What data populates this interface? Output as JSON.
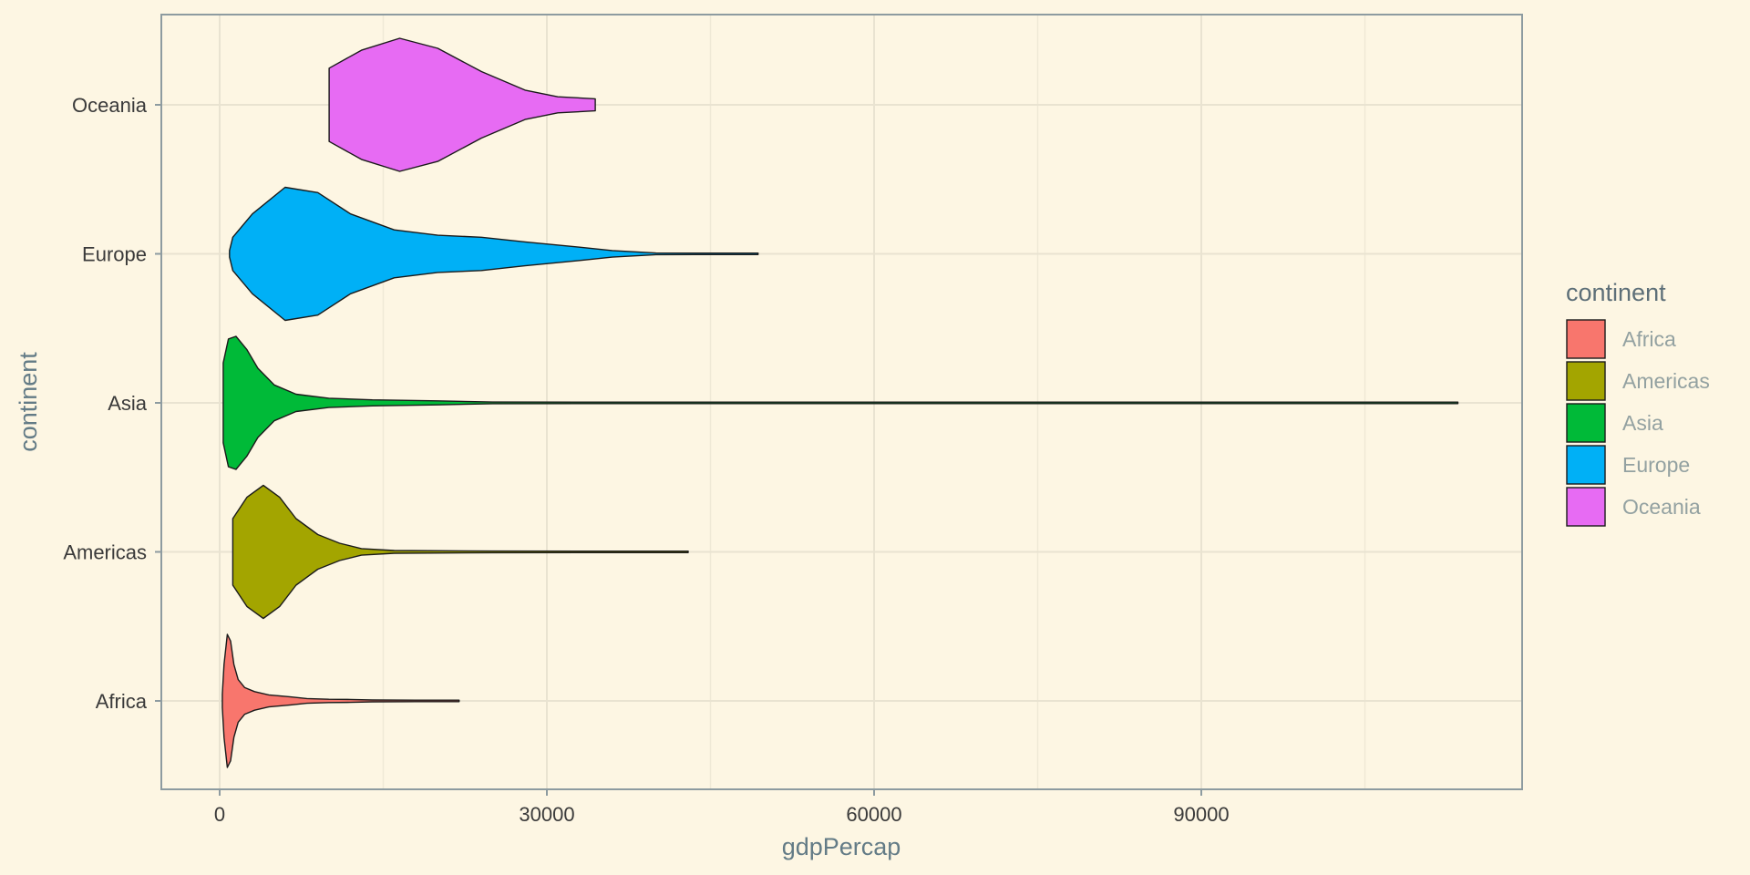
{
  "chart_data": {
    "type": "violin",
    "orientation": "horizontal",
    "title": "",
    "xlabel": "gdpPercap",
    "ylabel": "continent",
    "xlim": [
      -5500,
      119000
    ],
    "x_ticks": [
      0,
      30000,
      60000,
      90000
    ],
    "x_tick_labels": [
      "0",
      "30000",
      "60000",
      "90000"
    ],
    "x_minor_ticks": [
      15000,
      45000,
      75000,
      105000
    ],
    "categories": [
      "Africa",
      "Americas",
      "Asia",
      "Europe",
      "Oceania"
    ],
    "grid": true,
    "legend": {
      "title": "continent",
      "placement": "right"
    },
    "series": [
      {
        "name": "Africa",
        "color": "#F8766D",
        "min": 240,
        "max": 21950,
        "profile": [
          [
            240,
            0.1
          ],
          [
            400,
            0.55
          ],
          [
            700,
            1.0
          ],
          [
            1000,
            0.9
          ],
          [
            1300,
            0.55
          ],
          [
            1700,
            0.32
          ],
          [
            2300,
            0.2
          ],
          [
            3200,
            0.14
          ],
          [
            4500,
            0.09
          ],
          [
            6500,
            0.06
          ],
          [
            8000,
            0.035
          ],
          [
            10000,
            0.025
          ],
          [
            12000,
            0.022
          ],
          [
            14000,
            0.014
          ],
          [
            18000,
            0.009
          ],
          [
            21950,
            0.005
          ]
        ]
      },
      {
        "name": "Americas",
        "color": "#A3A500",
        "min": 1200,
        "max": 42950,
        "profile": [
          [
            1200,
            0.5
          ],
          [
            2500,
            0.82
          ],
          [
            4000,
            1.0
          ],
          [
            5500,
            0.82
          ],
          [
            7000,
            0.5
          ],
          [
            9000,
            0.26
          ],
          [
            11000,
            0.13
          ],
          [
            13000,
            0.05
          ],
          [
            16000,
            0.02
          ],
          [
            25000,
            0.012
          ],
          [
            42950,
            0.006
          ]
        ]
      },
      {
        "name": "Asia",
        "color": "#00BA38",
        "min": 330,
        "max": 113520,
        "profile": [
          [
            330,
            0.6
          ],
          [
            800,
            0.96
          ],
          [
            1500,
            1.0
          ],
          [
            2500,
            0.8
          ],
          [
            3500,
            0.52
          ],
          [
            5000,
            0.27
          ],
          [
            7000,
            0.13
          ],
          [
            10000,
            0.07
          ],
          [
            14000,
            0.045
          ],
          [
            20000,
            0.03
          ],
          [
            25000,
            0.012
          ],
          [
            35000,
            0.008
          ],
          [
            50000,
            0.003
          ],
          [
            113520,
            0.002
          ]
        ]
      },
      {
        "name": "Europe",
        "color": "#00B0F6",
        "min": 900,
        "max": 49360,
        "profile": [
          [
            900,
            0.05
          ],
          [
            1200,
            0.25
          ],
          [
            3000,
            0.6
          ],
          [
            6000,
            1.0
          ],
          [
            9000,
            0.92
          ],
          [
            12000,
            0.6
          ],
          [
            16000,
            0.36
          ],
          [
            20000,
            0.28
          ],
          [
            24000,
            0.25
          ],
          [
            28000,
            0.18
          ],
          [
            33000,
            0.1
          ],
          [
            36000,
            0.05
          ],
          [
            40000,
            0.012
          ],
          [
            49360,
            0.004
          ]
        ]
      },
      {
        "name": "Oceania",
        "color": "#E76BF3",
        "min": 10040,
        "max": 34440,
        "profile": [
          [
            10040,
            0.55
          ],
          [
            13000,
            0.82
          ],
          [
            16500,
            1.0
          ],
          [
            20000,
            0.85
          ],
          [
            24000,
            0.5
          ],
          [
            28000,
            0.22
          ],
          [
            31000,
            0.12
          ],
          [
            34440,
            0.09
          ]
        ]
      }
    ]
  }
}
